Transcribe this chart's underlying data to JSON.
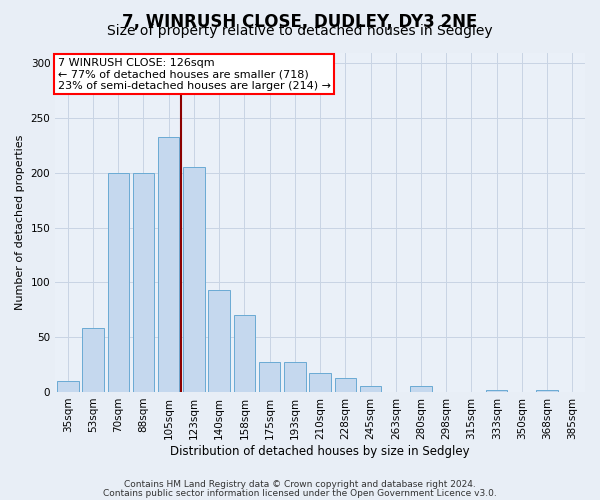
{
  "title1": "7, WINRUSH CLOSE, DUDLEY, DY3 2NE",
  "title2": "Size of property relative to detached houses in Sedgley",
  "xlabel": "Distribution of detached houses by size in Sedgley",
  "ylabel": "Number of detached properties",
  "categories": [
    "35sqm",
    "53sqm",
    "70sqm",
    "88sqm",
    "105sqm",
    "123sqm",
    "140sqm",
    "158sqm",
    "175sqm",
    "193sqm",
    "210sqm",
    "228sqm",
    "245sqm",
    "263sqm",
    "280sqm",
    "298sqm",
    "315sqm",
    "333sqm",
    "350sqm",
    "368sqm",
    "385sqm"
  ],
  "values": [
    10,
    58,
    200,
    200,
    233,
    205,
    93,
    70,
    27,
    27,
    17,
    13,
    5,
    0,
    5,
    0,
    0,
    2,
    0,
    2,
    0
  ],
  "bar_color": "#c5d8ee",
  "bar_edge_color": "#6aaad4",
  "annotation_text_line1": "7 WINRUSH CLOSE: 126sqm",
  "annotation_text_line2": "← 77% of detached houses are smaller (718)",
  "annotation_text_line3": "23% of semi-detached houses are larger (214) →",
  "annotation_box_color": "white",
  "annotation_box_edge": "red",
  "vline_color": "#8b0000",
  "vline_x_index": 5,
  "ylim": [
    0,
    310
  ],
  "yticks": [
    0,
    50,
    100,
    150,
    200,
    250,
    300
  ],
  "fig_bg_color": "#e8eef6",
  "plot_bg_color": "#eaf0f8",
  "grid_color": "#c8d4e4",
  "footer1": "Contains HM Land Registry data © Crown copyright and database right 2024.",
  "footer2": "Contains public sector information licensed under the Open Government Licence v3.0.",
  "title1_fontsize": 12,
  "title2_fontsize": 10,
  "xlabel_fontsize": 8.5,
  "ylabel_fontsize": 8,
  "tick_fontsize": 7.5,
  "ann_fontsize": 8,
  "footer_fontsize": 6.5
}
